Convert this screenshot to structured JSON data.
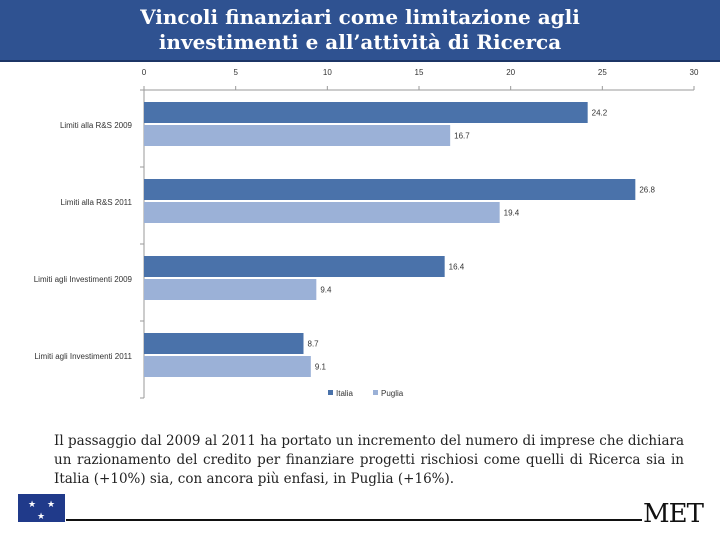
{
  "slide": {
    "title_line1": "Vincoli finanziari come limitazione agli",
    "title_line2": "investimenti e all’attività di Ricerca",
    "caption": "Il passaggio dal 2009 al 2011 ha portato un incremento del numero di imprese che dichiara un razionamento del credito per finanziare progetti rischiosi come quelli di Ricerca sia in Italia (+10%) sia, con ancora più enfasi, in Puglia (+16%).",
    "logo_text": "MET"
  },
  "colors": {
    "title_bg": "#2f5291",
    "italia": "#4a72aa",
    "puglia": "#9bb1d7",
    "flag": "#203a8a"
  },
  "icons": {
    "flag": "eu-flag-icon"
  },
  "chart_data": {
    "type": "bar",
    "orientation": "horizontal",
    "categories": [
      "Limiti alla R&S 2009",
      "Limiti alla R&S 2011",
      "Limiti agli Investimenti 2009",
      "Limiti agli Investimenti 2011"
    ],
    "series": [
      {
        "name": "Italia",
        "values": [
          24.2,
          26.8,
          16.4,
          8.7
        ]
      },
      {
        "name": "Puglia",
        "values": [
          16.7,
          19.4,
          9.4,
          9.1
        ]
      }
    ],
    "xlim": [
      0,
      30
    ],
    "xticks": [
      0,
      5,
      10,
      15,
      20,
      25,
      30
    ],
    "x_axis_position": "top",
    "grid": false,
    "legend_position": "bottom"
  }
}
